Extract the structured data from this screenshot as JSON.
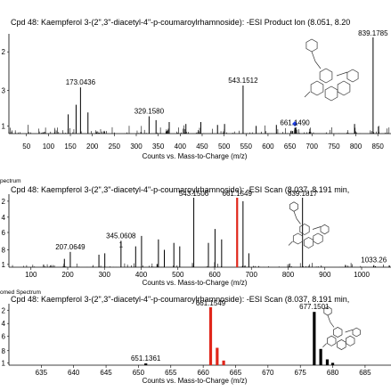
{
  "chart_data": [
    {
      "type": "bar",
      "panel_label": "",
      "title": "Cpd 48: Kaempferol 3-(2\",3\"-diacetyl-4\"-p-coumaroylrhamnoside): -ESI Product Ion (8.051, 8.20",
      "xlabel": "Counts vs. Mass-to-Charge (m/z)",
      "xlim": [
        10,
        880
      ],
      "x_ticks": [
        50,
        100,
        150,
        200,
        250,
        300,
        350,
        400,
        450,
        500,
        550,
        600,
        650,
        700,
        750,
        800,
        850
      ],
      "ylim": [
        0,
        1
      ],
      "y_tick_labels": [
        "2",
        "3",
        "1"
      ],
      "peak_labels": [
        {
          "mz": 173.0436,
          "label": "173.0436"
        },
        {
          "mz": 329.158,
          "label": "329.1580"
        },
        {
          "mz": 543.1512,
          "label": "543.1512"
        },
        {
          "mz": 661.149,
          "label": "661.1490"
        },
        {
          "mz": 839.1785,
          "label": "839.1785"
        }
      ],
      "precursor_marker": {
        "mz": 661.149,
        "color": "#1f3fe6"
      },
      "peaks": [
        {
          "mz": 173.0,
          "i": 0.48
        },
        {
          "mz": 163.0,
          "i": 0.3
        },
        {
          "mz": 190.0,
          "i": 0.22
        },
        {
          "mz": 145.0,
          "i": 0.2
        },
        {
          "mz": 329.2,
          "i": 0.18
        },
        {
          "mz": 345.0,
          "i": 0.14
        },
        {
          "mz": 375.0,
          "i": 0.12
        },
        {
          "mz": 413.0,
          "i": 0.1
        },
        {
          "mz": 447.0,
          "i": 0.12
        },
        {
          "mz": 485.0,
          "i": 0.09
        },
        {
          "mz": 501.0,
          "i": 0.1
        },
        {
          "mz": 543.2,
          "i": 0.5
        },
        {
          "mz": 573.0,
          "i": 0.08
        },
        {
          "mz": 619.0,
          "i": 0.09
        },
        {
          "mz": 661.1,
          "i": 0.06
        },
        {
          "mz": 797.0,
          "i": 0.1
        },
        {
          "mz": 839.2,
          "i": 1.0
        }
      ],
      "series_color": "#000000"
    },
    {
      "type": "bar",
      "panel_label": "pectrum",
      "title": "Cpd 48: Kaempferol 3-(2\",3\"-diacetyl-4\"-p-coumaroylrhamnoside): -ESI Scan (8.037, 8.191 min,",
      "xlabel": "Counts vs. Mass-to-Charge (m/z)",
      "xlim": [
        40,
        1080
      ],
      "x_ticks": [
        100,
        200,
        300,
        400,
        500,
        600,
        700,
        800,
        900,
        1000
      ],
      "ylim": [
        0,
        1.1
      ],
      "y_tick_labels": [
        "1",
        "8",
        "6",
        "4",
        "2"
      ],
      "peak_labels": [
        {
          "mz": 207.0649,
          "label": "207.0649"
        },
        {
          "mz": 345.0608,
          "label": "345.0608"
        },
        {
          "mz": 543.1506,
          "label": "543.1506"
        },
        {
          "mz": 661.1549,
          "label": "661.1549"
        },
        {
          "mz": 839.1817,
          "label": "839.1817"
        },
        {
          "mz": 1033.26,
          "label": "1033.26"
        }
      ],
      "peak_label_suffixes": [
        {
          "mz": 345.0608,
          "text": "1"
        }
      ],
      "peaks": [
        {
          "mz": 207.1,
          "i": 0.22
        },
        {
          "mz": 191.0,
          "i": 0.12
        },
        {
          "mz": 285.0,
          "i": 0.18
        },
        {
          "mz": 301.0,
          "i": 0.2
        },
        {
          "mz": 345.1,
          "i": 0.38
        },
        {
          "mz": 385.0,
          "i": 0.3
        },
        {
          "mz": 401.0,
          "i": 0.45
        },
        {
          "mz": 447.0,
          "i": 0.4
        },
        {
          "mz": 463.0,
          "i": 0.25
        },
        {
          "mz": 489.0,
          "i": 0.35
        },
        {
          "mz": 505.0,
          "i": 0.3
        },
        {
          "mz": 543.2,
          "i": 1.0
        },
        {
          "mz": 583.0,
          "i": 0.35
        },
        {
          "mz": 601.0,
          "i": 0.55
        },
        {
          "mz": 619.0,
          "i": 0.4
        },
        {
          "mz": 661.2,
          "i": 1.0
        },
        {
          "mz": 677.2,
          "i": 0.95
        },
        {
          "mz": 693.0,
          "i": 0.2
        },
        {
          "mz": 839.2,
          "i": 1.0
        },
        {
          "mz": 1033.3,
          "i": 0.03
        }
      ],
      "highlight_peak": {
        "mz": 661.2,
        "color": "#e0261a"
      },
      "series_color": "#000000"
    },
    {
      "type": "bar",
      "panel_label": "omed Spectrum",
      "title": "Cpd 48: Kaempferol 3-(2\",3\"-diacetyl-4\"-p-coumaroylrhamnoside): -ESI Scan (8.037, 8.191 min,",
      "xlabel": "Counts vs. Mass-to-Charge (m/z)",
      "xlim": [
        630,
        689
      ],
      "x_ticks": [
        635,
        640,
        645,
        650,
        655,
        660,
        665,
        670,
        675,
        680,
        685
      ],
      "ylim": [
        0,
        1.1
      ],
      "y_tick_labels": [
        "1",
        "8",
        "6",
        "4",
        "2"
      ],
      "peak_labels": [
        {
          "mz": 651.1361,
          "label": "651.1361"
        },
        {
          "mz": 661.1549,
          "label": "661.1549"
        },
        {
          "mz": 677.1501,
          "label": "677.1501"
        }
      ],
      "peaks": [
        {
          "mz": 661.15,
          "i": 1.0,
          "color": "#e0261a"
        },
        {
          "mz": 662.16,
          "i": 0.3,
          "color": "#e0261a"
        },
        {
          "mz": 663.16,
          "i": 0.08,
          "color": "#e0261a"
        },
        {
          "mz": 651.14,
          "i": 0.03,
          "color": "#000000"
        },
        {
          "mz": 677.15,
          "i": 0.92,
          "color": "#000000"
        },
        {
          "mz": 678.15,
          "i": 0.28,
          "color": "#000000"
        },
        {
          "mz": 679.16,
          "i": 0.1,
          "color": "#000000"
        },
        {
          "mz": 680.0,
          "i": 0.04,
          "color": "#000000"
        }
      ]
    }
  ]
}
